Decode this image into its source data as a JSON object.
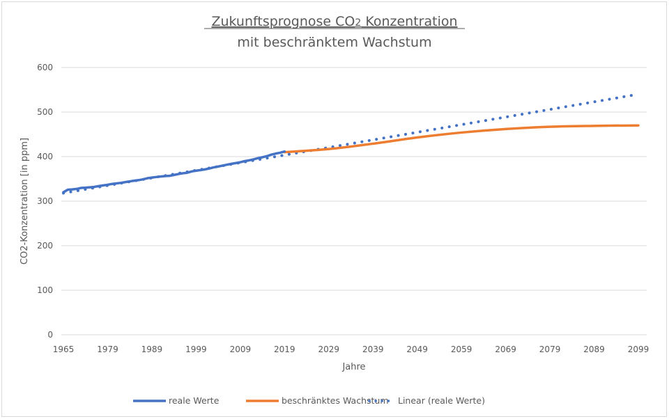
{
  "chart_data": {
    "type": "line",
    "title": "Zukunftsprognose CO2 Konzentration",
    "title_line1_parts": [
      "Zukunftsprognose CO",
      "2",
      " Konzentration"
    ],
    "subtitle": "mit beschränktem Wachstum",
    "xlabel": "Jahre",
    "ylabel": "CO2-Konzentration [in ppm]",
    "ylim": [
      0,
      600
    ],
    "yticks": [
      0,
      100,
      200,
      300,
      400,
      500,
      600
    ],
    "grid": true,
    "legend_position": "bottom",
    "x_tick_labels": [
      {
        "index": 0,
        "label": "1965"
      },
      {
        "index": 10,
        "label": "1979"
      },
      {
        "index": 20,
        "label": "1989"
      },
      {
        "index": 30,
        "label": "1999"
      },
      {
        "index": 40,
        "label": "2009"
      },
      {
        "index": 50,
        "label": "2019"
      },
      {
        "index": 60,
        "label": "2029"
      },
      {
        "index": 70,
        "label": "2039"
      },
      {
        "index": 80,
        "label": "2049"
      },
      {
        "index": 90,
        "label": "2059"
      },
      {
        "index": 100,
        "label": "2069"
      },
      {
        "index": 110,
        "label": "2079"
      },
      {
        "index": 120,
        "label": "2089"
      },
      {
        "index": 130,
        "label": "2099"
      }
    ],
    "category_count": 131,
    "series": [
      {
        "name": "reale Werte",
        "color": "#4472c4",
        "style": "solid",
        "start_index": 0,
        "values": [
          320.0,
          325.7,
          326.3,
          327.5,
          329.7,
          330.2,
          331.1,
          332.1,
          333.8,
          335.4,
          336.8,
          338.7,
          339.9,
          341.1,
          342.8,
          344.4,
          345.9,
          347.2,
          348.9,
          351.5,
          352.9,
          354.2,
          355.3,
          356.3,
          356.8,
          358.8,
          360.8,
          362.6,
          363.7,
          366.7,
          368.4,
          369.7,
          371.3,
          373.4,
          375.9,
          377.7,
          379.8,
          381.9,
          383.8,
          385.6,
          387.4,
          389.9,
          391.6,
          393.9,
          396.5,
          398.6,
          401.0,
          404.4,
          406.8,
          408.7,
          411.4
        ]
      },
      {
        "name": "beschränktes Wachstum",
        "color": "#ed7d31",
        "style": "solid",
        "start_index": 50,
        "keypoints": [
          {
            "index": 50,
            "value": 410
          },
          {
            "index": 60,
            "value": 417
          },
          {
            "index": 70,
            "value": 429
          },
          {
            "index": 80,
            "value": 443
          },
          {
            "index": 90,
            "value": 454
          },
          {
            "index": 100,
            "value": 462
          },
          {
            "index": 110,
            "value": 467
          },
          {
            "index": 120,
            "value": 469
          },
          {
            "index": 130,
            "value": 470
          }
        ]
      },
      {
        "name": "Linear (reale Werte)",
        "color": "#4472c4",
        "style": "dotted",
        "trendline": {
          "start_index": 0,
          "start_value": 318,
          "end_index": 130,
          "end_value": 540
        }
      }
    ]
  }
}
